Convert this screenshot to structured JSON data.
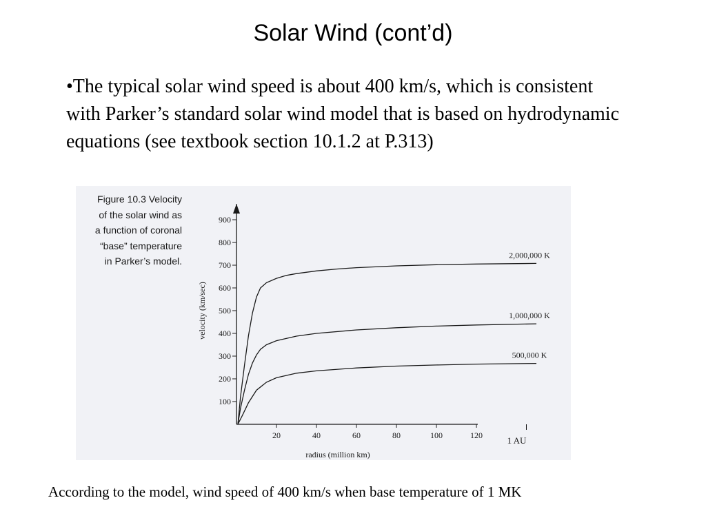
{
  "slide": {
    "title": "Solar Wind (cont’d)",
    "bullet": "•The typical solar wind speed is about 400 km/s, which is consistent with Parker’s standard solar wind model that is based on hydrodynamic equations (see textbook section 10.1.2 at P.313)",
    "footer": "According to the model, wind speed of 400 km/s when base temperature of 1 MK"
  },
  "figure": {
    "caption_lines": [
      "Figure 10.3  Velocity",
      "of the solar wind as",
      "a function of coronal",
      "“base” temperature",
      "in Parker’s model."
    ]
  },
  "chart_data": {
    "type": "line",
    "title": "",
    "xlabel": "radius (million km)",
    "ylabel": "velocity (km/sec)",
    "x_ticks": [
      20,
      40,
      60,
      80,
      100,
      120
    ],
    "y_ticks": [
      100,
      200,
      300,
      400,
      500,
      600,
      700,
      800,
      900
    ],
    "x_extra_label": "1 AU",
    "x_extra_value": 145,
    "xlim": [
      0,
      150
    ],
    "ylim": [
      0,
      1000
    ],
    "grid": false,
    "series": [
      {
        "name": "2,000,000 K",
        "x": [
          0.7,
          2,
          4,
          6,
          8,
          10,
          12,
          15,
          20,
          25,
          30,
          40,
          50,
          60,
          80,
          100,
          120,
          150
        ],
        "y": [
          0,
          120,
          260,
          390,
          490,
          560,
          600,
          623,
          642,
          655,
          663,
          675,
          683,
          689,
          697,
          702,
          705,
          708
        ]
      },
      {
        "name": "1,000,000 K",
        "x": [
          0.7,
          2,
          4,
          6,
          8,
          10,
          12,
          15,
          20,
          30,
          40,
          60,
          80,
          100,
          120,
          150
        ],
        "y": [
          0,
          70,
          150,
          220,
          270,
          305,
          330,
          350,
          368,
          388,
          400,
          415,
          425,
          432,
          437,
          442
        ]
      },
      {
        "name": "500,000 K",
        "x": [
          0.7,
          3,
          6,
          10,
          15,
          20,
          30,
          40,
          60,
          80,
          100,
          120,
          150
        ],
        "y": [
          0,
          40,
          95,
          150,
          185,
          205,
          225,
          235,
          248,
          256,
          261,
          265,
          268
        ]
      }
    ]
  }
}
